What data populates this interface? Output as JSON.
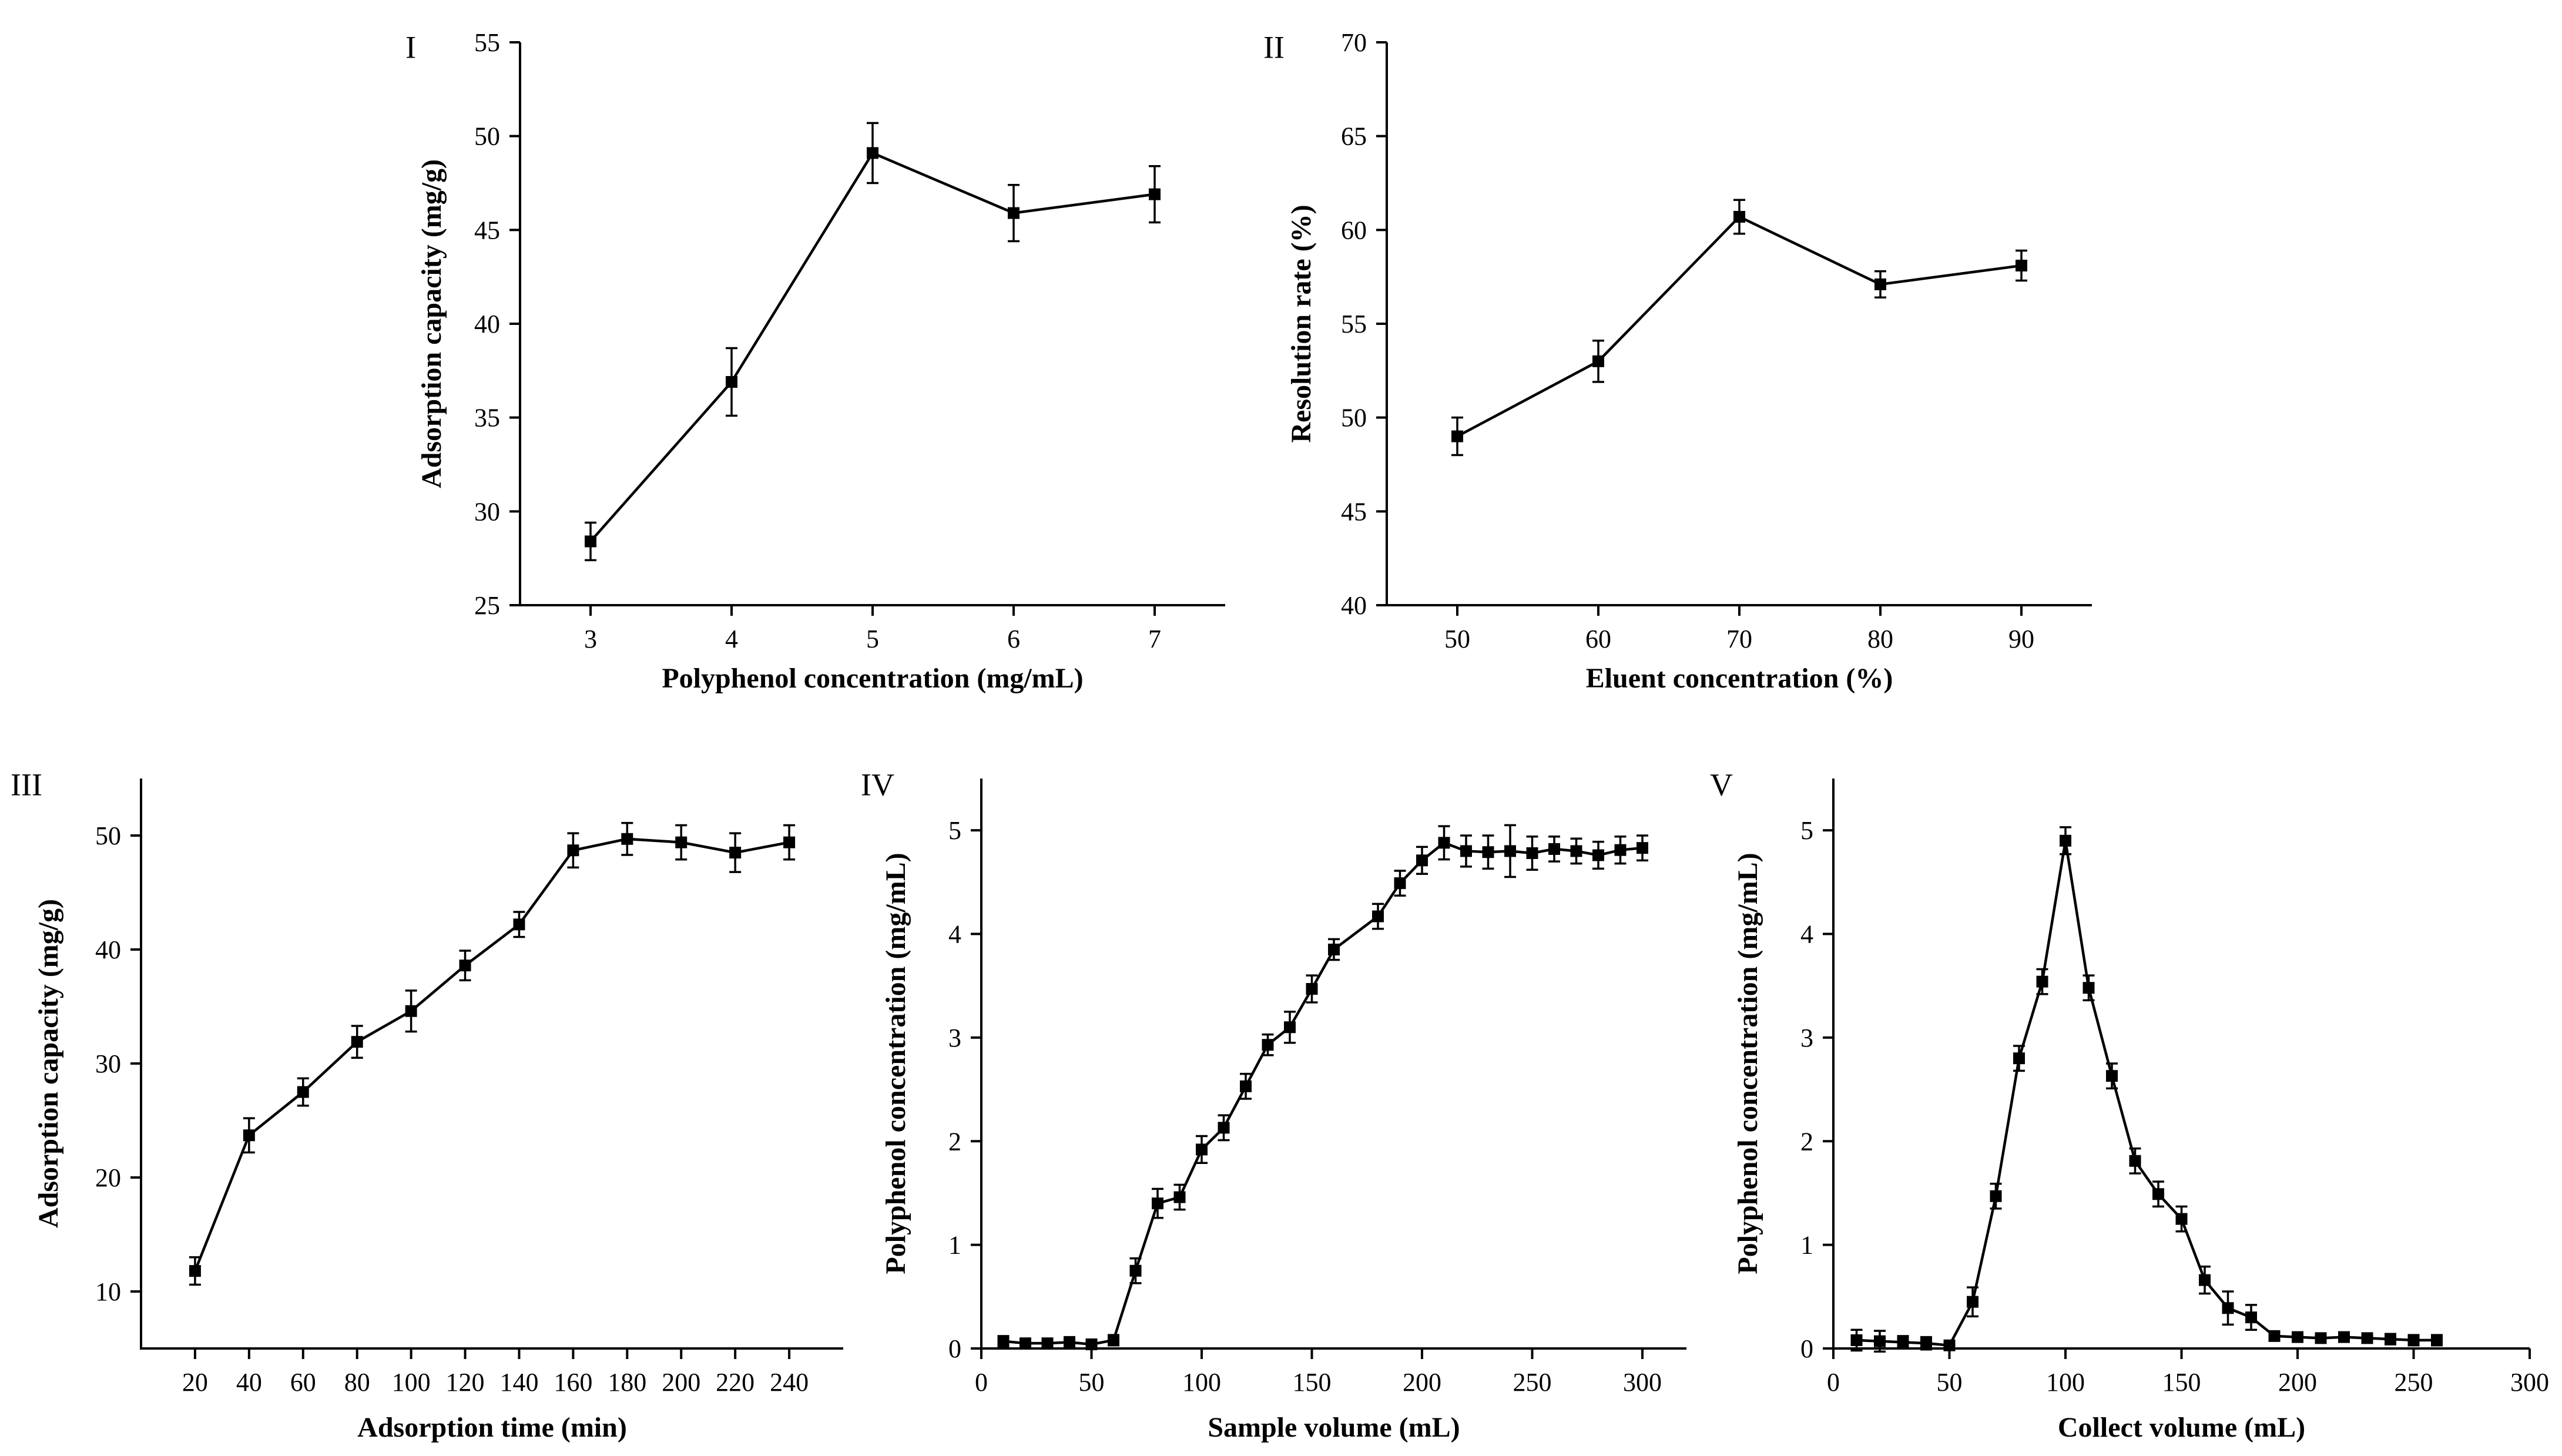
{
  "chart_data": [
    {
      "id": "I",
      "panel_label": "I",
      "type": "line",
      "xlabel": "Polyphenol concentration (mg/mL)",
      "ylabel": "Adsorption capacity (mg/g)",
      "xlim": [
        2.5,
        7.5
      ],
      "ylim": [
        25,
        55
      ],
      "xticks": [
        3,
        4,
        5,
        6,
        7
      ],
      "yticks": [
        25,
        30,
        35,
        40,
        45,
        50,
        55
      ],
      "series": [
        {
          "name": "Adsorption capacity",
          "x": [
            3,
            4,
            5,
            6,
            7
          ],
          "values": [
            28.4,
            36.9,
            49.1,
            45.9,
            46.9
          ],
          "errors": [
            1.0,
            1.8,
            1.6,
            1.5,
            1.5
          ]
        }
      ]
    },
    {
      "id": "II",
      "panel_label": "II",
      "type": "line",
      "xlabel": "Eluent concentration (%)",
      "ylabel": "Resolution rate (%)",
      "xlim": [
        45,
        95
      ],
      "ylim": [
        40,
        70
      ],
      "xticks": [
        50,
        60,
        70,
        80,
        90
      ],
      "yticks": [
        40,
        45,
        50,
        55,
        60,
        65,
        70
      ],
      "series": [
        {
          "name": "Resolution rate",
          "x": [
            50,
            60,
            70,
            80,
            90
          ],
          "values": [
            49.0,
            53.0,
            60.7,
            57.1,
            58.1
          ],
          "errors": [
            1.0,
            1.1,
            0.9,
            0.7,
            0.8
          ]
        }
      ]
    },
    {
      "id": "III",
      "panel_label": "III",
      "type": "line",
      "xlabel": "Adsorption time (min)",
      "ylabel": "Adsorption capacity (mg/g)",
      "xlim": [
        0,
        260
      ],
      "ylim": [
        5,
        55
      ],
      "xticks": [
        20,
        40,
        60,
        80,
        100,
        120,
        140,
        160,
        180,
        200,
        220,
        240
      ],
      "yticks": [
        10,
        20,
        30,
        40,
        50
      ],
      "series": [
        {
          "name": "Adsorption capacity",
          "x": [
            20,
            40,
            60,
            80,
            100,
            120,
            140,
            160,
            180,
            200,
            220,
            240
          ],
          "values": [
            11.8,
            23.7,
            27.5,
            31.9,
            34.6,
            38.6,
            42.2,
            48.7,
            49.7,
            49.4,
            48.5,
            49.4
          ],
          "errors": [
            1.2,
            1.5,
            1.2,
            1.4,
            1.8,
            1.3,
            1.1,
            1.5,
            1.4,
            1.5,
            1.7,
            1.5
          ]
        }
      ]
    },
    {
      "id": "IV",
      "panel_label": "IV",
      "type": "line",
      "xlabel": "Sample volume (mL)",
      "ylabel": "Polyphenol concentration (mg/mL)",
      "xlim": [
        0,
        320
      ],
      "ylim": [
        0,
        5.5
      ],
      "xticks": [
        0,
        50,
        100,
        150,
        200,
        250,
        300
      ],
      "yticks": [
        0,
        1,
        2,
        3,
        4,
        5
      ],
      "series": [
        {
          "name": "Polyphenol concentration",
          "x": [
            10,
            20,
            30,
            40,
            50,
            60,
            70,
            80,
            90,
            100,
            110,
            120,
            130,
            140,
            150,
            160,
            180,
            190,
            200,
            210,
            220,
            230,
            240,
            250,
            260,
            270,
            280,
            290,
            300
          ],
          "values": [
            0.07,
            0.05,
            0.05,
            0.06,
            0.04,
            0.08,
            0.75,
            1.4,
            1.46,
            1.92,
            2.13,
            2.53,
            2.93,
            3.1,
            3.47,
            3.85,
            4.17,
            4.49,
            4.71,
            4.88,
            4.8,
            4.79,
            4.8,
            4.78,
            4.82,
            4.8,
            4.76,
            4.81,
            4.83
          ],
          "errors": [
            0.05,
            0.04,
            0.04,
            0.05,
            0.04,
            0.05,
            0.12,
            0.14,
            0.12,
            0.13,
            0.12,
            0.12,
            0.1,
            0.15,
            0.13,
            0.1,
            0.12,
            0.12,
            0.13,
            0.16,
            0.15,
            0.16,
            0.25,
            0.16,
            0.12,
            0.12,
            0.13,
            0.13,
            0.12
          ]
        }
      ]
    },
    {
      "id": "V",
      "panel_label": "V",
      "type": "line",
      "xlabel": "Collect volume (mL)",
      "ylabel": "Polyphenol concentration (mg/mL)",
      "xlim": [
        0,
        300
      ],
      "ylim": [
        0,
        5.5
      ],
      "xticks": [
        0,
        50,
        100,
        150,
        200,
        250,
        300
      ],
      "yticks": [
        0,
        1,
        2,
        3,
        4,
        5
      ],
      "series": [
        {
          "name": "Polyphenol concentration",
          "x": [
            10,
            20,
            30,
            40,
            50,
            60,
            70,
            80,
            90,
            100,
            110,
            120,
            130,
            140,
            150,
            160,
            170,
            180,
            190,
            200,
            210,
            220,
            230,
            240,
            250,
            260
          ],
          "values": [
            0.08,
            0.07,
            0.06,
            0.05,
            0.03,
            0.45,
            1.47,
            2.8,
            3.54,
            4.9,
            3.48,
            2.63,
            1.81,
            1.49,
            1.25,
            0.66,
            0.39,
            0.3,
            0.12,
            0.11,
            0.1,
            0.11,
            0.1,
            0.09,
            0.08,
            0.08
          ],
          "errors": [
            0.1,
            0.1,
            0.06,
            0.06,
            0.04,
            0.14,
            0.12,
            0.12,
            0.12,
            0.13,
            0.12,
            0.12,
            0.12,
            0.12,
            0.12,
            0.13,
            0.16,
            0.12,
            0.04,
            0.04,
            0.04,
            0.04,
            0.04,
            0.05,
            0.05,
            0.05
          ]
        }
      ]
    }
  ]
}
